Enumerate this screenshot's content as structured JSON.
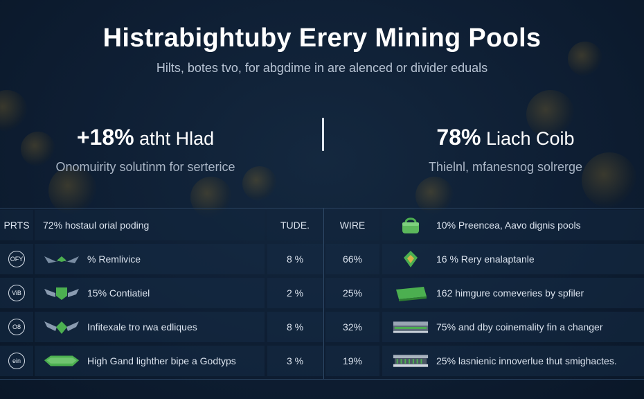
{
  "header": {
    "title": "Histrabightuby Erery Mining Pools",
    "subtitle": "Hilts, botes tvo, for abgdime in are alenced or divider eduals"
  },
  "stats": {
    "left": {
      "percent": "+18%",
      "label": "atht Hlad",
      "caption": "Onomuirity solutinm for serterice"
    },
    "right": {
      "percent": "78%",
      "label": "Liach Coib",
      "caption": "Thielnl, mfanesnog solrerge"
    }
  },
  "table": {
    "header": {
      "col1": "PRTS",
      "col2": "72% hostaul orial poding",
      "col3": "TUDE.",
      "col4": "WIRE",
      "col5": "10% Preencea, Aavo dignis pools"
    },
    "rows": [
      {
        "badge": "OFY",
        "name": "% Remlivice",
        "v1": "8 %",
        "v2": "66%",
        "desc": "16 % Rery enalaptanle"
      },
      {
        "badge": "ViB",
        "name": "15% Contiatiel",
        "v1": "2 %",
        "v2": "25%",
        "desc": "162 himgure comeveries by spfiler"
      },
      {
        "badge": "O8",
        "name": "Infitexale tro rwa edliques",
        "v1": "8 %",
        "v2": "32%",
        "desc": "75% and dby coinemality fin a changer"
      },
      {
        "badge": "ein",
        "name": "High Gand lighther bipe a Godtyps",
        "v1": "3 %",
        "v2": "19%",
        "desc": "25% lasnienic innoverlue thut smighactes."
      }
    ]
  },
  "colors": {
    "background": "#0e1e33",
    "accent_green": "#4caf50",
    "text": "#e6edf5"
  }
}
